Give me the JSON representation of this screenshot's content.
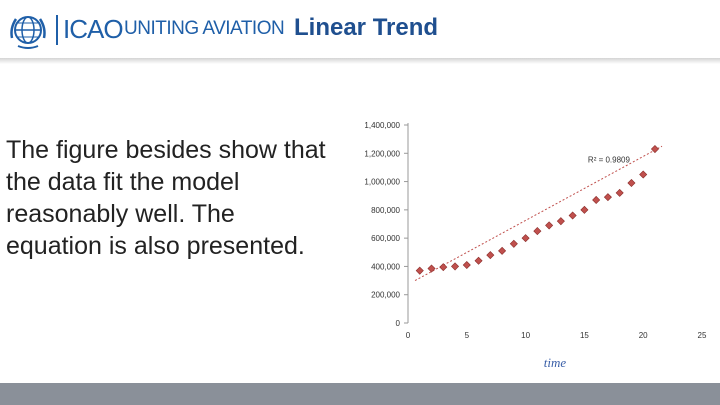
{
  "header": {
    "logo_icao": "ICAO",
    "logo_tagline": "UNITING AVIATION",
    "slide_title": "Linear Trend",
    "brand_color": "#1f5fa8",
    "title_color": "#1f4f8f"
  },
  "body": {
    "text": "The figure besides show that the data fit the model reasonably well. The equation is also presented."
  },
  "footer": {
    "color": "#8a9099"
  },
  "chart_data": {
    "type": "scatter",
    "title": "",
    "xlabel": "time",
    "ylabel": "",
    "xlim": [
      0,
      25
    ],
    "ylim": [
      0,
      1400000
    ],
    "x_ticks": [
      0,
      5,
      10,
      15,
      20,
      25
    ],
    "y_ticks": [
      0,
      200000,
      400000,
      600000,
      800000,
      1000000,
      1200000,
      1400000
    ],
    "x_tick_labels": [
      "0",
      "5",
      "10",
      "15",
      "20",
      "25"
    ],
    "y_tick_labels": [
      "0",
      "200,000",
      "400,000",
      "600,000",
      "800,000",
      "1,000,000",
      "1,200,000",
      "1,400,000"
    ],
    "annotation": "R² = 0.9809",
    "marker_color": "#c0504d",
    "trendline_color": "#c0504d",
    "grid": false,
    "series": [
      {
        "x": [
          1,
          2,
          3,
          4,
          5,
          6,
          7,
          8,
          9,
          10,
          11,
          12,
          13,
          14,
          15,
          16,
          17,
          18,
          19,
          20,
          21
        ],
        "y": [
          370000,
          385000,
          395000,
          400000,
          410000,
          440000,
          480000,
          510000,
          560000,
          600000,
          650000,
          690000,
          720000,
          760000,
          800000,
          870000,
          890000,
          920000,
          990000,
          1050000,
          1230000
        ]
      }
    ],
    "trendline": {
      "x": [
        0.6,
        21.6
      ],
      "y": [
        300000,
        1250000
      ]
    }
  }
}
